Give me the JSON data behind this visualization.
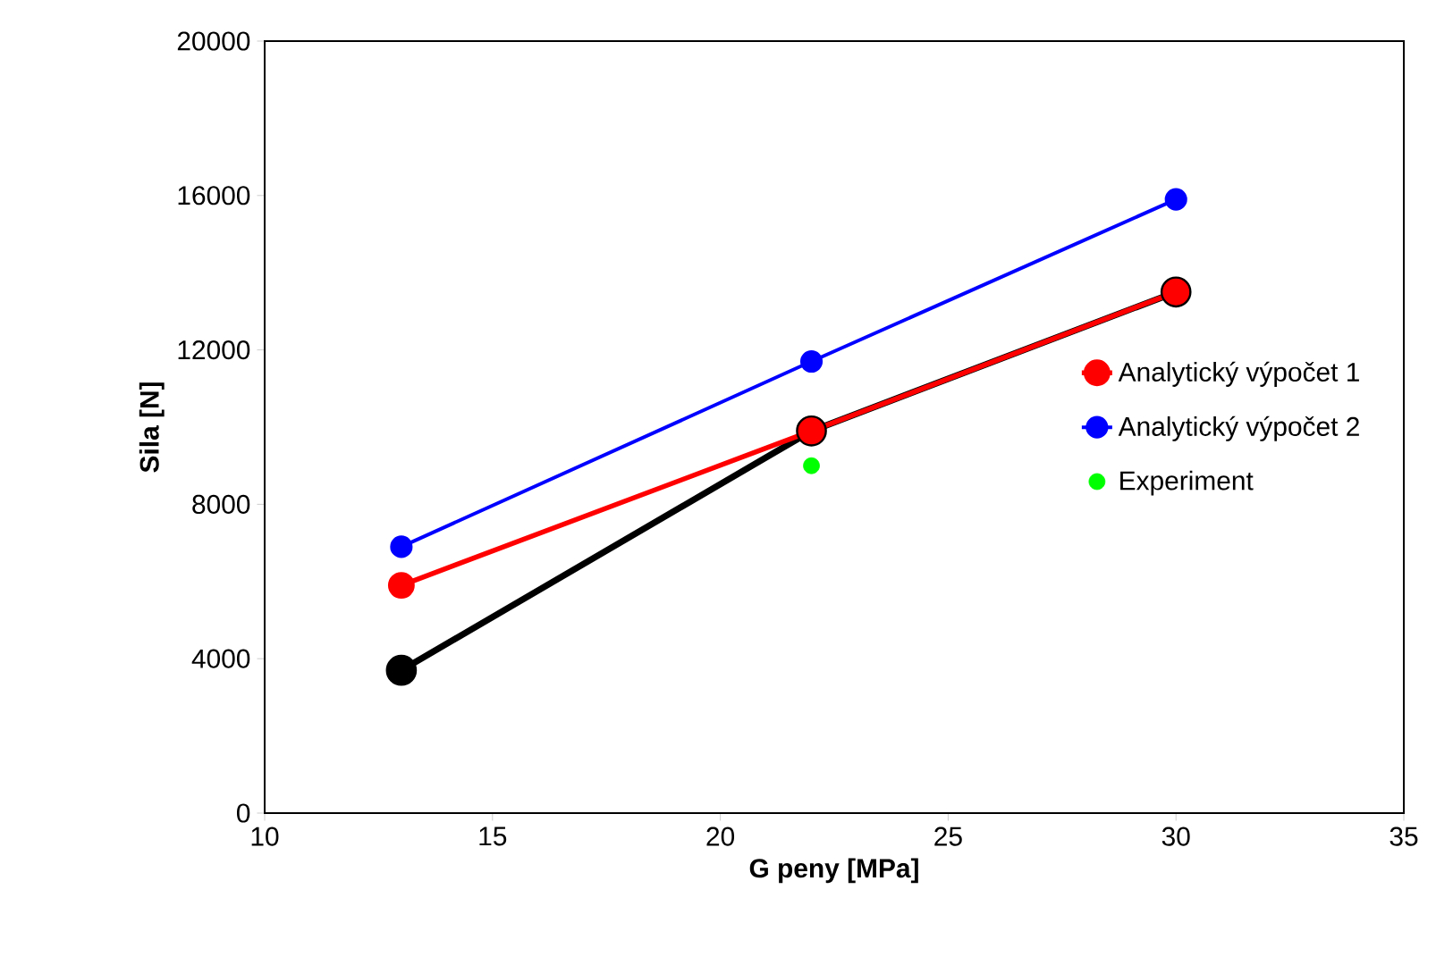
{
  "chart_data": {
    "type": "line",
    "xlabel": "G peny [MPa]",
    "ylabel": "Sila [N]",
    "xlim": [
      10,
      35
    ],
    "xticks": [
      10,
      15,
      20,
      25,
      30,
      35
    ],
    "ylim": [
      0,
      20000
    ],
    "yticks": [
      0,
      4000,
      8000,
      12000,
      16000,
      20000
    ],
    "grid": false,
    "legend": "right",
    "marker": "circle",
    "series": [
      {
        "color": "#000000",
        "x": [
          13,
          22,
          30
        ],
        "values": [
          3700,
          9900,
          13500
        ]
      },
      {
        "name": "Analytický výpočet 1",
        "color": "#ff0000",
        "x": [
          13,
          22,
          30
        ],
        "values": [
          5900,
          9900,
          13500
        ]
      },
      {
        "name": "Analytický výpočet 2",
        "color": "#0000ff",
        "x": [
          13,
          22,
          30
        ],
        "values": [
          6900,
          11700,
          15900
        ]
      },
      {
        "name": "Experiment",
        "type": "scatter",
        "color": "#00ff00",
        "x": [
          22
        ],
        "values": [
          9000
        ]
      }
    ]
  }
}
